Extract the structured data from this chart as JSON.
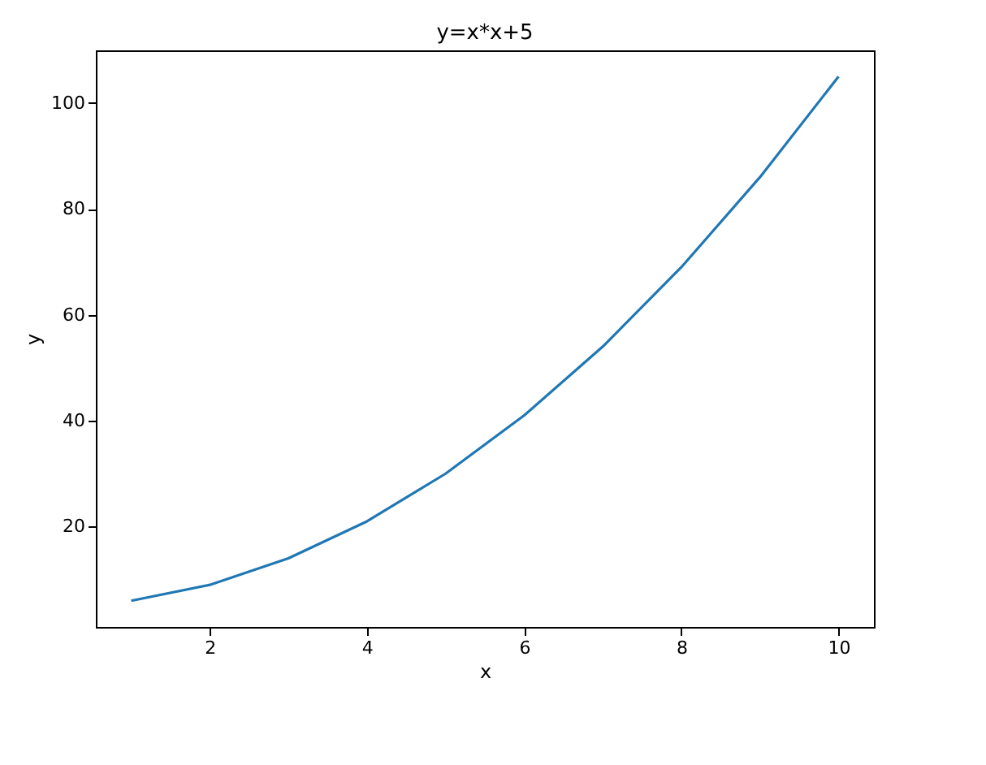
{
  "chart_data": {
    "type": "line",
    "title": "y=x*x+5",
    "xlabel": "x",
    "ylabel": "y",
    "x": [
      1,
      2,
      3,
      4,
      5,
      6,
      7,
      8,
      9,
      10
    ],
    "series": [
      {
        "color": "#1f77b4",
        "values": [
          6,
          9,
          14,
          21,
          30,
          41,
          54,
          69,
          86,
          105
        ]
      }
    ],
    "xlim": [
      0.55,
      10.45
    ],
    "ylim": [
      1.05,
      109.95
    ],
    "xticks": [
      2,
      4,
      6,
      8,
      10
    ],
    "yticks": [
      20,
      40,
      60,
      80,
      100
    ],
    "grid": false,
    "marker": "none",
    "line_style": "solid"
  }
}
